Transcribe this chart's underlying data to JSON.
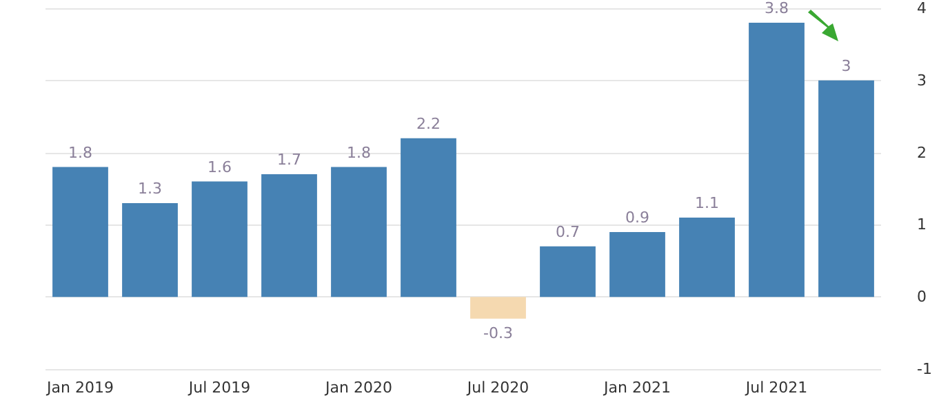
{
  "chart_data": {
    "type": "bar",
    "categories": [
      "Jan 2019",
      null,
      "Jul 2019",
      null,
      "Jan 2020",
      null,
      "Jul 2020",
      null,
      "Jan 2021",
      null,
      "Jul 2021",
      null
    ],
    "values": [
      1.8,
      1.3,
      1.6,
      1.7,
      1.8,
      2.2,
      -0.3,
      0.7,
      0.9,
      1.1,
      3.8,
      3
    ],
    "colors": [
      "#4682b4",
      "#4682b4",
      "#4682b4",
      "#4682b4",
      "#4682b4",
      "#4682b4",
      "#f5d9b0",
      "#4682b4",
      "#4682b4",
      "#4682b4",
      "#4682b4",
      "#4682b4"
    ],
    "ylim": [
      -1,
      4
    ],
    "yticks": [
      -1,
      0,
      1,
      2,
      3,
      4
    ],
    "grid": "y",
    "data_labels": true
  }
}
